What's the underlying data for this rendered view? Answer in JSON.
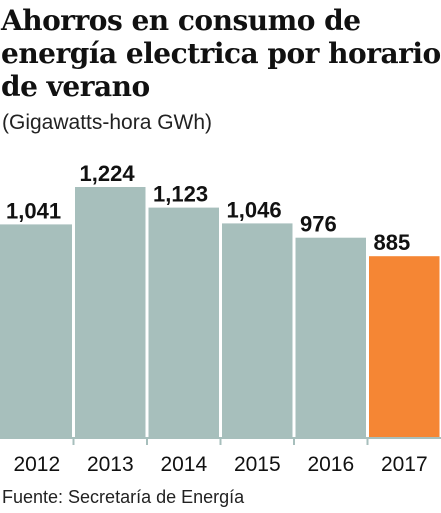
{
  "header": {
    "title": "Ahorros en consumo de energía electrica por horario de verano",
    "subtitle": "(Gigawatts-hora GWh)"
  },
  "footer": {
    "source": "Fuente: Secretaría de Energía"
  },
  "colors": {
    "bar": "#a7bfbc",
    "highlight": "#f58634",
    "axis": "#a7bfbc",
    "text": "#111111"
  },
  "chart_data": {
    "type": "bar",
    "title": "Ahorros en consumo de energía electrica por horario de verano",
    "subtitle": "(Gigawatts-hora GWh)",
    "xlabel": "",
    "ylabel": "",
    "categories": [
      "2012",
      "2013",
      "2014",
      "2015",
      "2016",
      "2017"
    ],
    "values": [
      1041,
      1224,
      1123,
      1046,
      976,
      885
    ],
    "value_labels": [
      "1,041",
      "1,224",
      "1,123",
      "1,046",
      "976",
      "885"
    ],
    "highlight_index": 5,
    "ylim": [
      0,
      1224
    ],
    "grid": false,
    "legend": "none"
  }
}
